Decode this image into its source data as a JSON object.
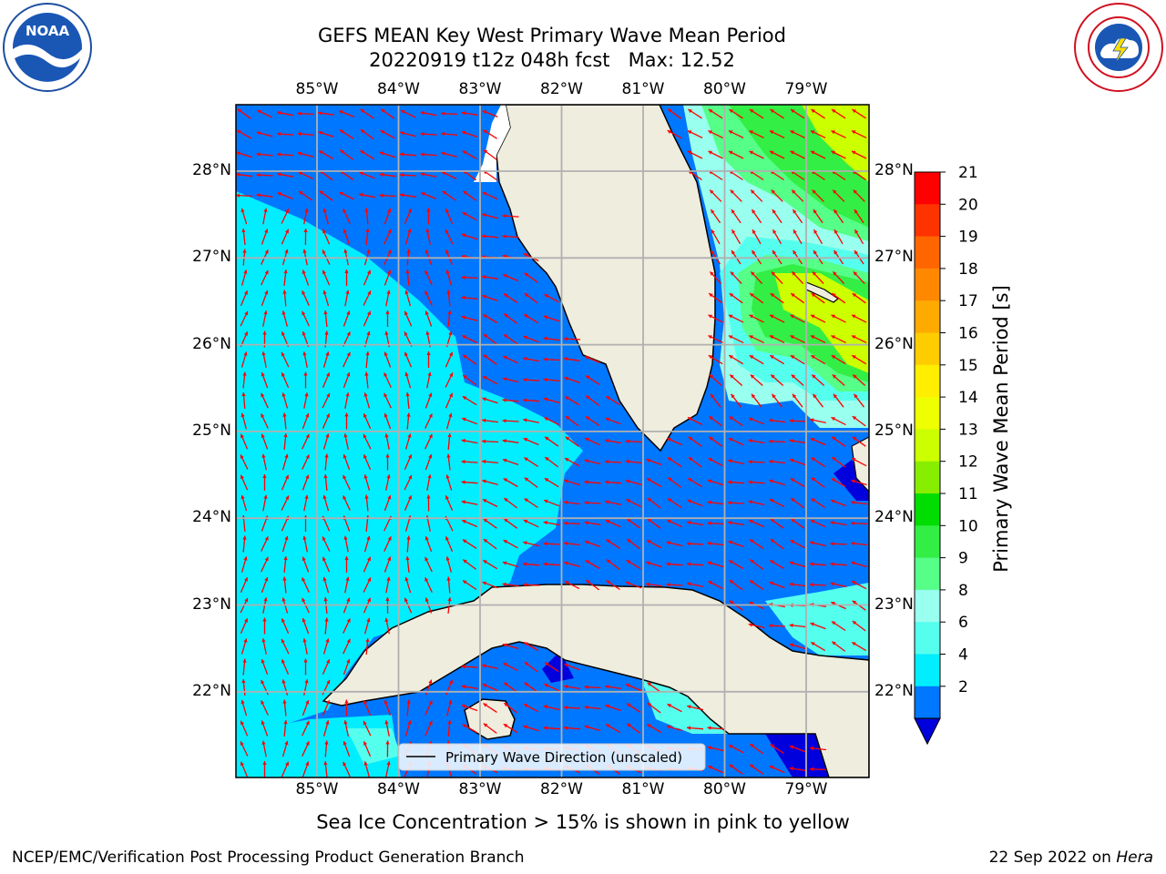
{
  "header": {
    "title_line1": "GEFS MEAN Key West Primary Wave Mean Period",
    "title_line2": "20220919 t12z 048h fcst   Max: 12.52"
  },
  "logos": {
    "left": {
      "icon": "noaa-logo",
      "text": "NOAA"
    },
    "right": {
      "icon": "nws-logo",
      "text": "NATIONAL WEATHER SERVICE"
    }
  },
  "map": {
    "lon_ticks": [
      "85°W",
      "84°W",
      "83°W",
      "82°W",
      "81°W",
      "80°W",
      "79°W"
    ],
    "lat_ticks": [
      "28°N",
      "27°N",
      "26°N",
      "25°N",
      "24°N",
      "23°N",
      "22°N"
    ],
    "legend_label": "Primary Wave Direction (unscaled)",
    "arrow_color": "#ff0000",
    "land_color": "#efedde"
  },
  "colorbar": {
    "label": "Primary Wave Mean Period [s]",
    "ticks": [
      "21",
      "20",
      "19",
      "18",
      "17",
      "16",
      "15",
      "14",
      "13",
      "12",
      "11",
      "10",
      "9",
      "8",
      "6",
      "4",
      "2"
    ],
    "colors": [
      "#ff0000",
      "#ff3300",
      "#ff6600",
      "#ff8800",
      "#ffaa00",
      "#ffcc00",
      "#ffee00",
      "#eeff00",
      "#ccff00",
      "#88ee00",
      "#00dd00",
      "#33ee44",
      "#55ff88",
      "#99ffee",
      "#55ffee",
      "#00eeff",
      "#0077ff"
    ],
    "extend_color": "#0000dd"
  },
  "note": "Sea Ice Concentration > 15% is shown in pink to yellow",
  "footer": {
    "left": "NCEP/EMC/Verification Post Processing Product Generation Branch",
    "right_date": "22 Sep 2022 on ",
    "right_host": "Hera"
  }
}
